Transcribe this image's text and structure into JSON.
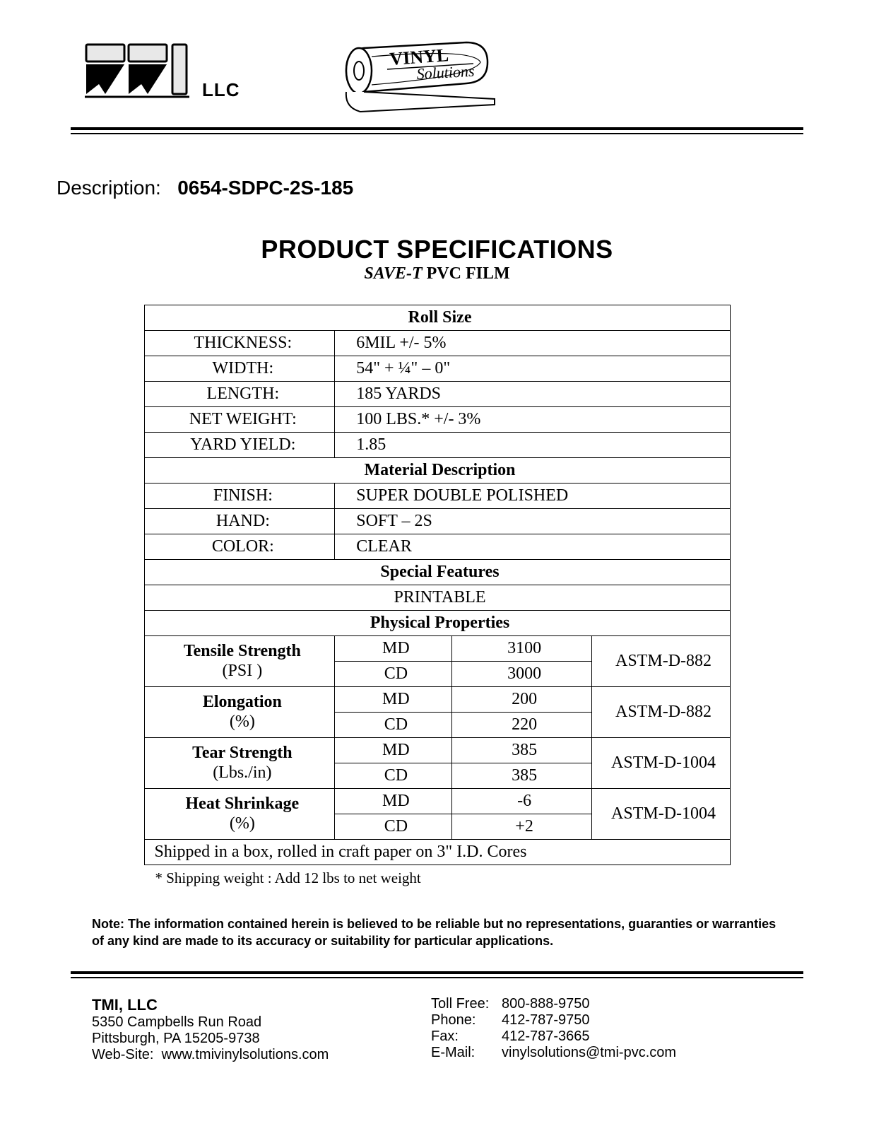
{
  "logo": {
    "company_suffix": "LLC",
    "roll_text_top": "VINYL",
    "roll_text_bottom": "Solutions"
  },
  "description": {
    "label": "Description:",
    "value": "0654-SDPC-2S-185"
  },
  "title": {
    "main": "PRODUCT SPECIFICATIONS",
    "sub_italic": "SAVE-T",
    "sub_rest": " PVC FILM"
  },
  "sections": {
    "roll_size": {
      "heading": "Roll Size",
      "rows": [
        {
          "label": "THICKNESS:",
          "value": "6MIL  +/- 5%"
        },
        {
          "label": "WIDTH:",
          "value": "54\" + ¼\" – 0\""
        },
        {
          "label": "LENGTH:",
          "value": "185 YARDS"
        },
        {
          "label": "NET WEIGHT:",
          "value": "100 LBS.*  +/- 3%"
        },
        {
          "label": "YARD YIELD:",
          "value": "1.85"
        }
      ]
    },
    "material": {
      "heading": "Material Description",
      "rows": [
        {
          "label": "FINISH:",
          "value": "SUPER DOUBLE POLISHED"
        },
        {
          "label": "HAND:",
          "value": "SOFT – 2S"
        },
        {
          "label": "COLOR:",
          "value": "CLEAR"
        }
      ]
    },
    "features": {
      "heading": "Special Features",
      "value": "PRINTABLE"
    },
    "physical": {
      "heading": "Physical Properties",
      "props": [
        {
          "name": "Tensile Strength",
          "unit": "(PSI )",
          "md": "3100",
          "cd": "3000",
          "std": "ASTM-D-882"
        },
        {
          "name": "Elongation",
          "unit": "(%)",
          "md": "200",
          "cd": "220",
          "std": "ASTM-D-882"
        },
        {
          "name": "Tear Strength",
          "unit": "(Lbs./in)",
          "md": "385",
          "cd": "385",
          "std": "ASTM-D-1004"
        },
        {
          "name": "Heat Shrinkage",
          "unit": "(%)",
          "md": "-6",
          "cd": "+2",
          "std": "ASTM-D-1004"
        }
      ],
      "dir_md": "MD",
      "dir_cd": "CD"
    },
    "shipping": "Shipped in a box, rolled in craft paper on 3\" I.D. Cores"
  },
  "footnote": "* Shipping weight :  Add 12 lbs to net weight",
  "note": "Note:   The information contained herein is believed to be reliable but no representations, guaranties or warranties of any kind are made to its accuracy or suitability for particular applications.",
  "footer": {
    "company": "TMI, LLC",
    "address1": "5350 Campbells Run Road",
    "address2": "Pittsburgh, PA  15205-9738",
    "website_label": "Web-Site:",
    "website": "www.tmivinylsolutions.com",
    "contacts": [
      {
        "label": "Toll Free:",
        "value": "800-888-9750"
      },
      {
        "label": "Phone:",
        "value": "412-787-9750"
      },
      {
        "label": "Fax:",
        "value": "412-787-3665"
      },
      {
        "label": "E-Mail:",
        "value": "vinylsolutions@tmi-pvc.com"
      }
    ]
  },
  "colors": {
    "text": "#000000",
    "background": "#ffffff",
    "logo_fill": "#e8e8e8"
  }
}
